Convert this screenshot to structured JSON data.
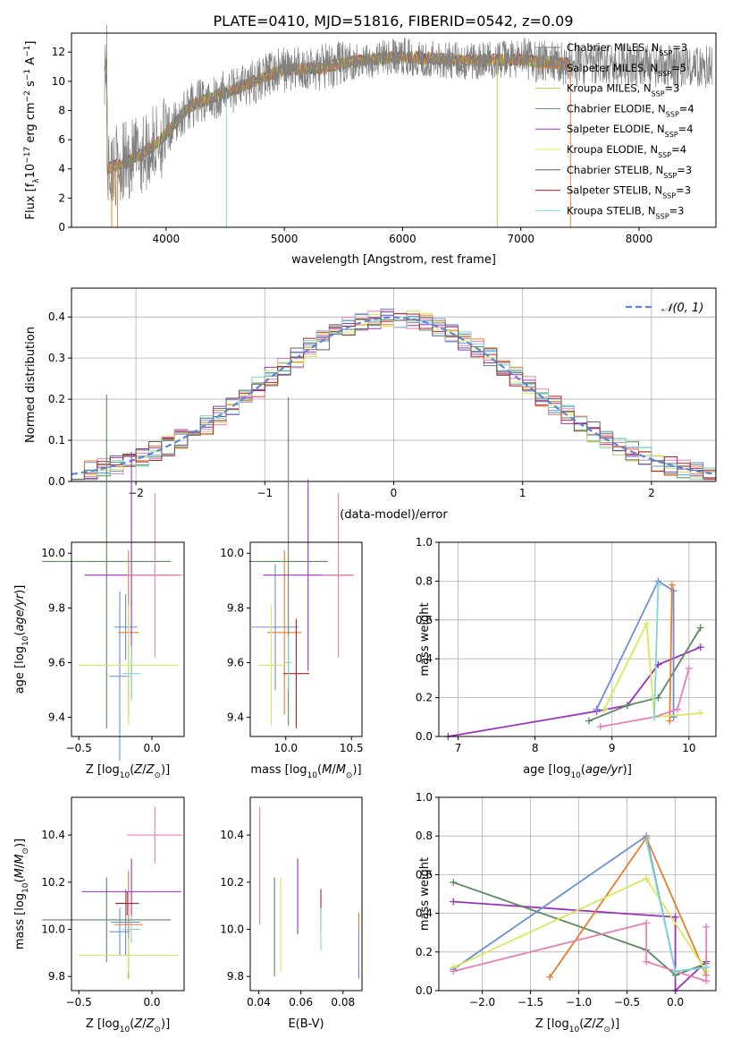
{
  "title": "PLATE=0410, MJD=51816, FIBERID=0542, z=0.09",
  "colors": [
    "#808080",
    "#e87d2a",
    "#c9c94a",
    "#5a8a5e",
    "#9b30c0",
    "#d9e85a",
    "#606060",
    "#b81f1f",
    "#7fd6d6"
  ],
  "legend_top": [
    {
      "name": "Chabrier MILES, N",
      "sub": "SSP",
      "tail": "=3"
    },
    {
      "name": "Salpeter MILES, N",
      "sub": "SSP",
      "tail": "=5"
    },
    {
      "name": "Kroupa MILES, N",
      "sub": "SSP",
      "tail": "=3"
    },
    {
      "name": "Chabrier ELODIE, N",
      "sub": "SSP",
      "tail": "=4"
    },
    {
      "name": "Salpeter ELODIE, N",
      "sub": "SSP",
      "tail": "=4"
    },
    {
      "name": "Kroupa ELODIE, N",
      "sub": "SSP",
      "tail": "=4"
    },
    {
      "name": "Chabrier STELIB, N",
      "sub": "SSP",
      "tail": "=3"
    },
    {
      "name": "Salpeter STELIB, N",
      "sub": "SSP",
      "tail": "=3"
    },
    {
      "name": "Kroupa STELIB, N",
      "sub": "SSP",
      "tail": "=3"
    }
  ],
  "legend_hist": "𝒩(0, 1)",
  "chart_data": [
    {
      "type": "line",
      "xlabel": "wavelength [Angstrom, rest frame]",
      "ylabel_parts": [
        "Flux [f",
        "λ",
        "10",
        "−17",
        " erg cm",
        "−2",
        " s",
        "−1",
        " A",
        "−1",
        "]"
      ],
      "xlim": [
        3200,
        8650
      ],
      "ylim": [
        0,
        13.3
      ],
      "xticks": [
        4000,
        5000,
        6000,
        7000,
        8000
      ],
      "yticks": [
        0,
        2,
        4,
        6,
        8,
        10,
        12
      ],
      "spectrum_shape": [
        [
          3500,
          4.0
        ],
        [
          3700,
          4.6
        ],
        [
          3900,
          5.6
        ],
        [
          4000,
          6.4
        ],
        [
          4200,
          8.3
        ],
        [
          4500,
          9.2
        ],
        [
          4800,
          10.2
        ],
        [
          5000,
          10.8
        ],
        [
          5300,
          10.9
        ],
        [
          5600,
          11.4
        ],
        [
          6000,
          11.7
        ],
        [
          6500,
          11.4
        ],
        [
          7000,
          11.5
        ],
        [
          7400,
          11.2
        ]
      ]
    },
    {
      "type": "step",
      "xlabel": "(data-model)/error",
      "ylabel": "Normed distribution",
      "xlim": [
        -2.5,
        2.5
      ],
      "ylim": [
        0,
        0.47
      ],
      "xticks": [
        -2,
        -1,
        0,
        1,
        2
      ],
      "yticks": [
        0.0,
        0.1,
        0.2,
        0.3,
        0.4
      ],
      "reference_curve": "N(0,1)"
    },
    {
      "type": "scatter",
      "xlabel": "Z [log10(Z/Z⊙)]",
      "ylabel": "age  [log10(age/yr)]",
      "xlim": [
        -0.55,
        0.22
      ],
      "ylim": [
        9.33,
        10.04
      ],
      "xticks": [
        -0.5,
        0.0
      ],
      "yticks": [
        9.4,
        9.6,
        9.8,
        10.0
      ],
      "points": [
        {
          "x": -0.22,
          "y": 9.55,
          "xerr": 0.07,
          "yerr": 0.31,
          "c": "#6a8fd6"
        },
        {
          "x": -0.18,
          "y": 9.73,
          "xerr": 0.08,
          "yerr": 0.12,
          "c": "#6a8fd6"
        },
        {
          "x": -0.16,
          "y": 9.71,
          "xerr": 0.07,
          "yerr": 0.3,
          "c": "#e87d2a"
        },
        {
          "x": -0.31,
          "y": 9.97,
          "xerr": 0.44,
          "yerr": 0.61,
          "c": "#5a8a5e"
        },
        {
          "x": -0.14,
          "y": 9.92,
          "xerr": 0.32,
          "yerr": 0.45,
          "c": "#9b30c0"
        },
        {
          "x": 0.02,
          "y": 9.92,
          "xerr": 0.19,
          "yerr": 0.3,
          "c": "#e87fb5"
        },
        {
          "x": -0.16,
          "y": 9.59,
          "xerr": 0.34,
          "yerr": 0.22,
          "c": "#d9e85a"
        },
        {
          "x": -0.14,
          "y": 9.56,
          "xerr": 0.06,
          "yerr": 0.1,
          "c": "#7fd6d6"
        }
      ]
    },
    {
      "type": "scatter",
      "xlabel": "mass [log10(M/M⊙)]",
      "ylabel": "",
      "xlim": [
        9.73,
        10.58
      ],
      "ylim": [
        9.33,
        10.04
      ],
      "xticks": [
        10.0,
        10.5
      ],
      "yticks": [
        9.4,
        9.6,
        9.8,
        10.0
      ],
      "points": [
        {
          "x": 9.92,
          "y": 9.73,
          "xerr": 0.18,
          "yerr": 0.23,
          "c": "#6a8fd6"
        },
        {
          "x": 9.99,
          "y": 9.71,
          "xerr": 0.13,
          "yerr": 0.3,
          "c": "#e87d2a"
        },
        {
          "x": 10.02,
          "y": 9.97,
          "xerr": 0.3,
          "yerr": 0.6,
          "c": "#5a8a5e"
        },
        {
          "x": 10.17,
          "y": 9.92,
          "xerr": 0.34,
          "yerr": 0.35,
          "c": "#9b30c0"
        },
        {
          "x": 10.4,
          "y": 9.92,
          "xerr": 0.12,
          "yerr": 0.3,
          "c": "#e87fb5"
        },
        {
          "x": 9.89,
          "y": 9.59,
          "xerr": 0.1,
          "yerr": 0.22,
          "c": "#d9e85a"
        },
        {
          "x": 10.08,
          "y": 9.56,
          "xerr": 0.1,
          "yerr": 0.2,
          "c": "#b81f1f"
        },
        {
          "x": 10.02,
          "y": 9.6,
          "xerr": 0.02,
          "yerr": 0.1,
          "c": "#7fd6d6"
        }
      ]
    },
    {
      "type": "line",
      "xlabel": "age  [log10(age/yr)]",
      "ylabel": "mass weight",
      "xlim": [
        6.75,
        10.35
      ],
      "ylim": [
        0,
        1.0
      ],
      "xticks": [
        7,
        8,
        9,
        10
      ],
      "yticks": [
        0.0,
        0.2,
        0.4,
        0.6,
        0.8,
        1.0
      ],
      "series": [
        {
          "c": "#9b30c0",
          "pts": [
            [
              6.87,
              0.0
            ],
            [
              8.8,
              0.13
            ],
            [
              9.2,
              0.16
            ],
            [
              9.6,
              0.37
            ],
            [
              10.15,
              0.46
            ]
          ]
        },
        {
          "c": "#5a8a5e",
          "pts": [
            [
              8.7,
              0.08
            ],
            [
              9.2,
              0.16
            ],
            [
              9.6,
              0.2
            ],
            [
              10.15,
              0.56
            ]
          ]
        },
        {
          "c": "#6a8fd6",
          "pts": [
            [
              8.8,
              0.14
            ],
            [
              9.6,
              0.8
            ],
            [
              9.8,
              0.75
            ],
            [
              9.8,
              0.1
            ]
          ]
        },
        {
          "c": "#e87d2a",
          "pts": [
            [
              9.75,
              0.08
            ],
            [
              9.78,
              0.78
            ]
          ]
        },
        {
          "c": "#d9e85a",
          "pts": [
            [
              8.9,
              0.14
            ],
            [
              9.45,
              0.58
            ],
            [
              9.55,
              0.1
            ],
            [
              10.15,
              0.12
            ]
          ]
        },
        {
          "c": "#e87fb5",
          "pts": [
            [
              8.85,
              0.05
            ],
            [
              9.55,
              0.1
            ],
            [
              9.85,
              0.14
            ],
            [
              10.0,
              0.35
            ]
          ]
        },
        {
          "c": "#7fd6d6",
          "pts": [
            [
              9.6,
              0.78
            ],
            [
              9.55,
              0.1
            ]
          ]
        }
      ]
    },
    {
      "type": "scatter",
      "xlabel": "Z [log10(Z/Z⊙)]",
      "ylabel": "mass [log10(M/M⊙)]",
      "xlim": [
        -0.55,
        0.22
      ],
      "ylim": [
        9.74,
        10.56
      ],
      "xticks": [
        -0.5,
        0.0
      ],
      "yticks": [
        9.8,
        10.0,
        10.2,
        10.4
      ],
      "points": [
        {
          "x": -0.22,
          "y": 9.99,
          "xerr": 0.07,
          "yerr": 0.1,
          "c": "#6a8fd6"
        },
        {
          "x": -0.18,
          "y": 10.03,
          "xerr": 0.1,
          "yerr": 0.14,
          "c": "#6a8fd6"
        },
        {
          "x": -0.16,
          "y": 10.02,
          "xerr": 0.1,
          "yerr": 0.23,
          "c": "#e87d2a"
        },
        {
          "x": -0.31,
          "y": 10.04,
          "xerr": 0.44,
          "yerr": 0.18,
          "c": "#5a8a5e"
        },
        {
          "x": -0.14,
          "y": 10.16,
          "xerr": 0.34,
          "yerr": 0.14,
          "c": "#9b30c0"
        },
        {
          "x": 0.02,
          "y": 10.4,
          "xerr": 0.19,
          "yerr": 0.12,
          "c": "#e87fb5"
        },
        {
          "x": -0.16,
          "y": 9.89,
          "xerr": 0.34,
          "yerr": 0.07,
          "c": "#d9e85a"
        },
        {
          "x": -0.17,
          "y": 10.11,
          "xerr": 0.08,
          "yerr": 0.05,
          "c": "#b81f1f"
        },
        {
          "x": -0.14,
          "y": 10.0,
          "xerr": 0.06,
          "yerr": 0.06,
          "c": "#7fd6d6"
        }
      ]
    },
    {
      "type": "scatter",
      "xlabel": "E(B-V)",
      "ylabel": "",
      "xlim": [
        0.036,
        0.089
      ],
      "ylim": [
        9.74,
        10.56
      ],
      "xticks": [
        0.04,
        0.06,
        0.08
      ],
      "yticks": [
        9.8,
        10.0,
        10.2,
        10.4
      ],
      "points": [
        {
          "x": 0.0405,
          "y": 10.27,
          "yerr": 0.25,
          "c": "#e87fb5"
        },
        {
          "x": 0.0475,
          "y": 10.01,
          "yerr": 0.21,
          "c": "#5a8a5e"
        },
        {
          "x": 0.0505,
          "y": 10.02,
          "yerr": 0.2,
          "c": "#d9e85a"
        },
        {
          "x": 0.0585,
          "y": 10.14,
          "yerr": 0.16,
          "c": "#9b30c0"
        },
        {
          "x": 0.0695,
          "y": 10.08,
          "yerr": 0.09,
          "c": "#b81f1f"
        },
        {
          "x": 0.0695,
          "y": 10.0,
          "yerr": 0.09,
          "c": "#7fd6d6"
        },
        {
          "x": 0.0875,
          "y": 9.93,
          "yerr": 0.14,
          "c": "#e87d2a"
        },
        {
          "x": 0.0875,
          "y": 9.9,
          "yerr": 0.1,
          "c": "#6a8fd6"
        }
      ]
    },
    {
      "type": "line",
      "xlabel": "Z [log10(Z/Z⊙)]",
      "ylabel": "mass weight",
      "xlim": [
        -2.45,
        0.42
      ],
      "ylim": [
        0,
        1.0
      ],
      "xticks": [
        -2.0,
        -1.5,
        -1.0,
        -0.5,
        0.0
      ],
      "yticks": [
        0.0,
        0.2,
        0.4,
        0.6,
        0.8,
        1.0
      ],
      "series": [
        {
          "c": "#9b30c0",
          "pts": [
            [
              -2.3,
              0.46
            ],
            [
              0.0,
              0.38
            ],
            [
              0.0,
              0.0
            ],
            [
              0.32,
              0.15
            ]
          ]
        },
        {
          "c": "#5a8a5e",
          "pts": [
            [
              -2.3,
              0.56
            ],
            [
              -0.3,
              0.21
            ],
            [
              0.0,
              0.08
            ],
            [
              0.32,
              0.14
            ]
          ]
        },
        {
          "c": "#6a8fd6",
          "pts": [
            [
              -2.3,
              0.11
            ],
            [
              -0.3,
              0.8
            ],
            [
              0.0,
              0.1
            ],
            [
              0.32,
              0.12
            ]
          ]
        },
        {
          "c": "#e87d2a",
          "pts": [
            [
              -1.3,
              0.07
            ],
            [
              -0.3,
              0.79
            ],
            [
              0.32,
              0.08
            ]
          ]
        },
        {
          "c": "#d9e85a",
          "pts": [
            [
              -2.3,
              0.12
            ],
            [
              -0.3,
              0.58
            ],
            [
              0.32,
              0.1
            ]
          ]
        },
        {
          "c": "#e87fb5",
          "pts": [
            [
              -2.3,
              0.1
            ],
            [
              -0.3,
              0.35
            ],
            [
              -0.3,
              0.15
            ],
            [
              0.0,
              0.1
            ],
            [
              0.32,
              0.05
            ],
            [
              0.32,
              0.33
            ]
          ]
        },
        {
          "c": "#7fd6d6",
          "pts": [
            [
              -0.3,
              0.78
            ],
            [
              0.0,
              0.1
            ],
            [
              0.32,
              0.12
            ]
          ]
        }
      ]
    }
  ]
}
